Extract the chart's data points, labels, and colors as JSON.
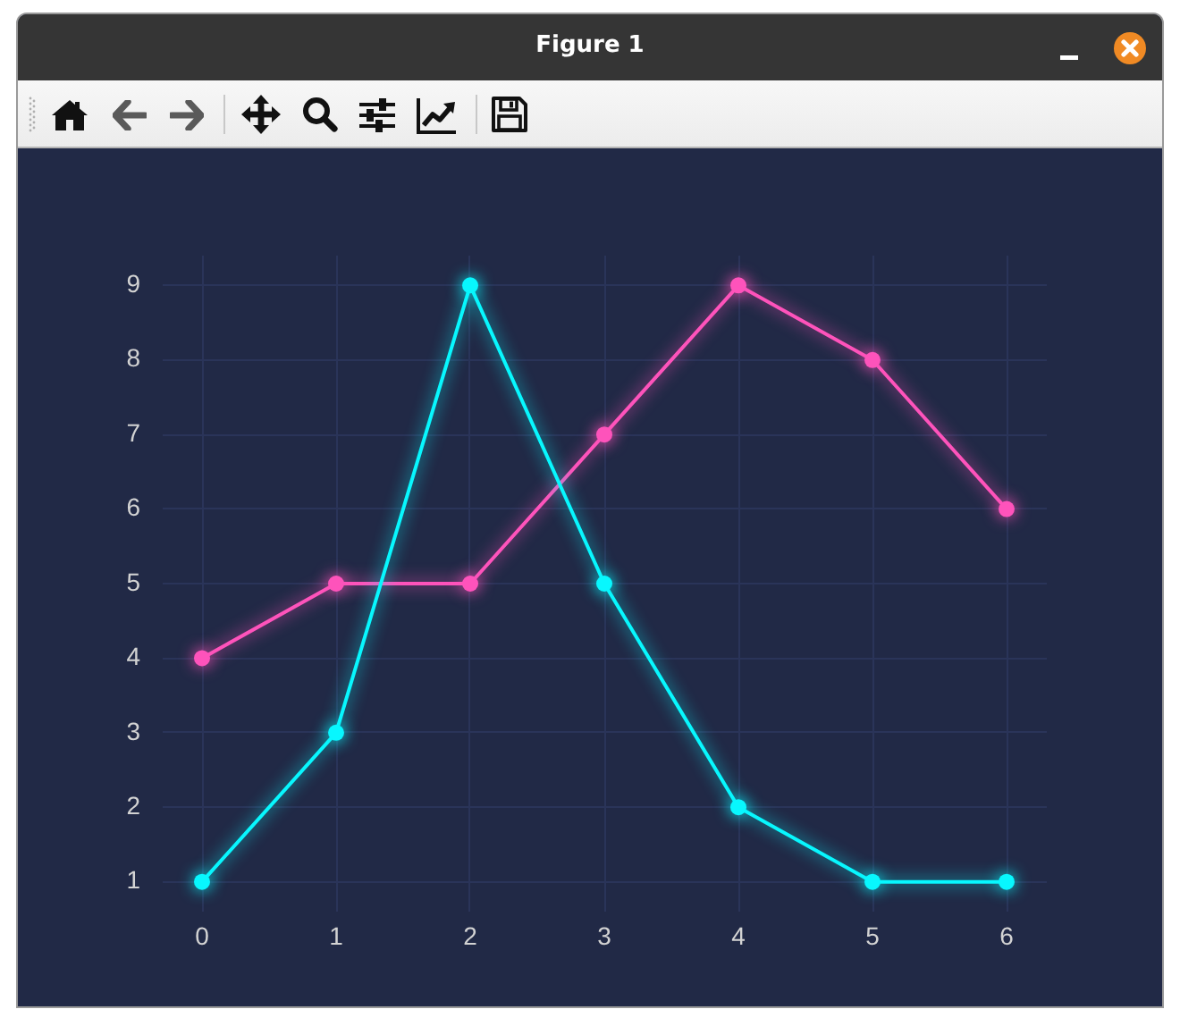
{
  "chart_data": {
    "type": "line",
    "title": "Figure 1",
    "x": [
      0,
      1,
      2,
      3,
      4,
      5,
      6
    ],
    "series": [
      {
        "color": "#08f7fe",
        "values": [
          1,
          3,
          9,
          5,
          2,
          1,
          1
        ]
      },
      {
        "color": "#fe53bb",
        "values": [
          4,
          5,
          5,
          7,
          9,
          8,
          6
        ]
      }
    ],
    "xlim": [
      -0.3,
      6.3
    ],
    "ylim": [
      0.6,
      9.4
    ],
    "xticks": [
      0,
      1,
      2,
      3,
      4,
      5,
      6
    ],
    "yticks": [
      1,
      2,
      3,
      4,
      5,
      6,
      7,
      8,
      9
    ],
    "grid": true,
    "legend": false,
    "marker": "circle",
    "line_style": "solid"
  }
}
